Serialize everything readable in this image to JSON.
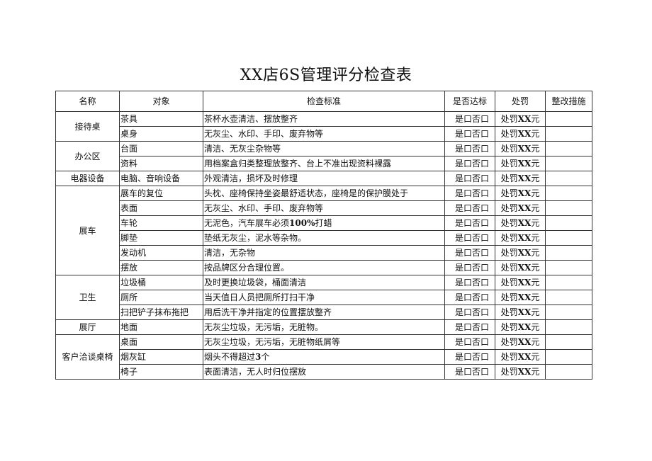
{
  "title": "XX店6S管理评分检查表",
  "headers": [
    "名称",
    "对象",
    "检查标准",
    "是否达标",
    "处罚",
    "整改措施"
  ],
  "check_text": "是口否口",
  "penalty": {
    "prefix": "处罚",
    "amount": "XX",
    "suffix": "元"
  },
  "groups": [
    {
      "name": "接待桌",
      "items": [
        {
          "object": "茶具",
          "criteria": [
            "茶杯水壶清洁、摆放整齐"
          ]
        },
        {
          "object": "桌身",
          "criteria": [
            "无灰尘、水印、手印、废弃物等"
          ]
        }
      ]
    },
    {
      "name": "办公区",
      "items": [
        {
          "object": "台面",
          "criteria": [
            "清洁、无灰尘杂物等"
          ]
        },
        {
          "object": "资料",
          "criteria": [
            "用档案盒归类整理放整齐、台上不准出现资料裸露"
          ]
        }
      ]
    },
    {
      "name": "电器设备",
      "items": [
        {
          "object": "电脑、音响设备",
          "criteria": [
            "外观清洁，损坏及时修理"
          ]
        }
      ]
    },
    {
      "name": "展车",
      "items": [
        {
          "object": "展车的复位",
          "criteria": [
            "头枕、座椅保持坐姿最舒适状态，座椅是的保护膜处于"
          ]
        },
        {
          "object": "表面",
          "criteria": [
            "无灰尘、水印、手印、废弃物等"
          ]
        },
        {
          "object": "车轮",
          "criteria": [
            "无泥色，汽车展车必须",
            "100%",
            "打蜡"
          ]
        },
        {
          "object": "脚垫",
          "criteria": [
            "垫纸无灰尘，泥水等杂物。"
          ]
        },
        {
          "object": "发动机",
          "criteria": [
            "清洁，无杂物"
          ]
        },
        {
          "object": "摆放",
          "criteria": [
            "按品牌区分合理位置。"
          ]
        }
      ]
    },
    {
      "name": "卫生",
      "items": [
        {
          "object": "垃圾桶",
          "criteria": [
            "及时更换垃圾袋，桶面清洁"
          ]
        },
        {
          "object": "厕所",
          "criteria": [
            "当天值日人员把厕所打扫干净"
          ]
        },
        {
          "object": "扫把铲子抹布拖把",
          "criteria": [
            "用后洗干净并指定的位置摆放整齐"
          ]
        }
      ]
    },
    {
      "name": "展厅",
      "items": [
        {
          "object": "地面",
          "criteria": [
            "无灰尘垃圾，无污垢，无脏物。"
          ]
        }
      ]
    },
    {
      "name": "客户洽谈桌椅",
      "items": [
        {
          "object": "桌面",
          "criteria": [
            "无灰尘垃圾，无污垢，无脏物纸屑等"
          ]
        },
        {
          "object": "烟灰缸",
          "criteria": [
            "烟头不得超过",
            "3",
            "个"
          ]
        },
        {
          "object": "椅子",
          "criteria": [
            "表面清洁，无人时归位摆放"
          ]
        }
      ]
    }
  ]
}
